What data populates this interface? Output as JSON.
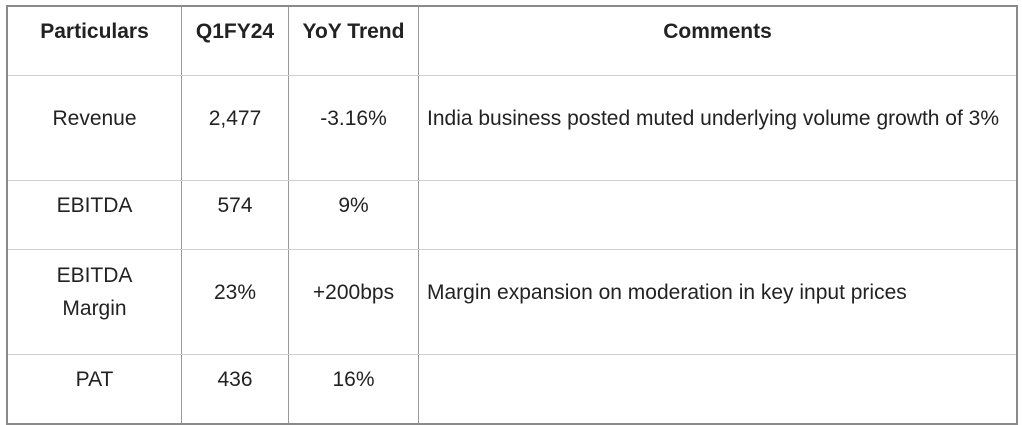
{
  "headers": [
    "Particulars",
    "Q1FY24",
    "YoY Trend",
    "Comments"
  ],
  "rows": [
    {
      "particular": "Revenue",
      "q1fy24": "2,477",
      "yoy": "-3.16%",
      "comment": "India business posted muted underlying volume growth of 3%"
    },
    {
      "particular": "EBITDA",
      "q1fy24": "574",
      "yoy": "9%",
      "comment": ""
    },
    {
      "particular": "EBITDA Margin",
      "q1fy24": "23%",
      "yoy": "+200bps",
      "comment": "Margin expansion on moderation in key input prices"
    },
    {
      "particular": "PAT",
      "q1fy24": "436",
      "yoy": "16%",
      "comment": ""
    }
  ]
}
